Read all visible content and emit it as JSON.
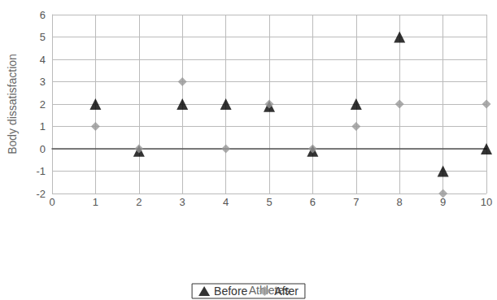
{
  "chart_data": {
    "type": "scatter",
    "x_label": "Athletes",
    "y_label": "Body dissatisfaction",
    "x": [
      1,
      2,
      3,
      4,
      5,
      6,
      7,
      8,
      9,
      10
    ],
    "series": [
      {
        "name": "Before",
        "color": "#000000",
        "marker": "triangle",
        "values": [
          2,
          -0.1,
          2,
          2,
          1.9,
          -0.1,
          2,
          5,
          -1,
          0
        ]
      },
      {
        "name": "After",
        "color": "#999999",
        "marker": "diamond",
        "values": [
          1,
          0,
          3,
          0,
          2,
          0,
          1,
          2,
          -2,
          2
        ]
      }
    ],
    "xlim": [
      0,
      10
    ],
    "xticks": [
      0,
      1,
      2,
      3,
      4,
      5,
      6,
      7,
      8,
      9,
      10
    ],
    "ylim": [
      -2,
      6
    ],
    "yticks": [
      -2,
      -1,
      0,
      1,
      2,
      3,
      4,
      5,
      6
    ],
    "grid": true,
    "legend": "bottom"
  }
}
